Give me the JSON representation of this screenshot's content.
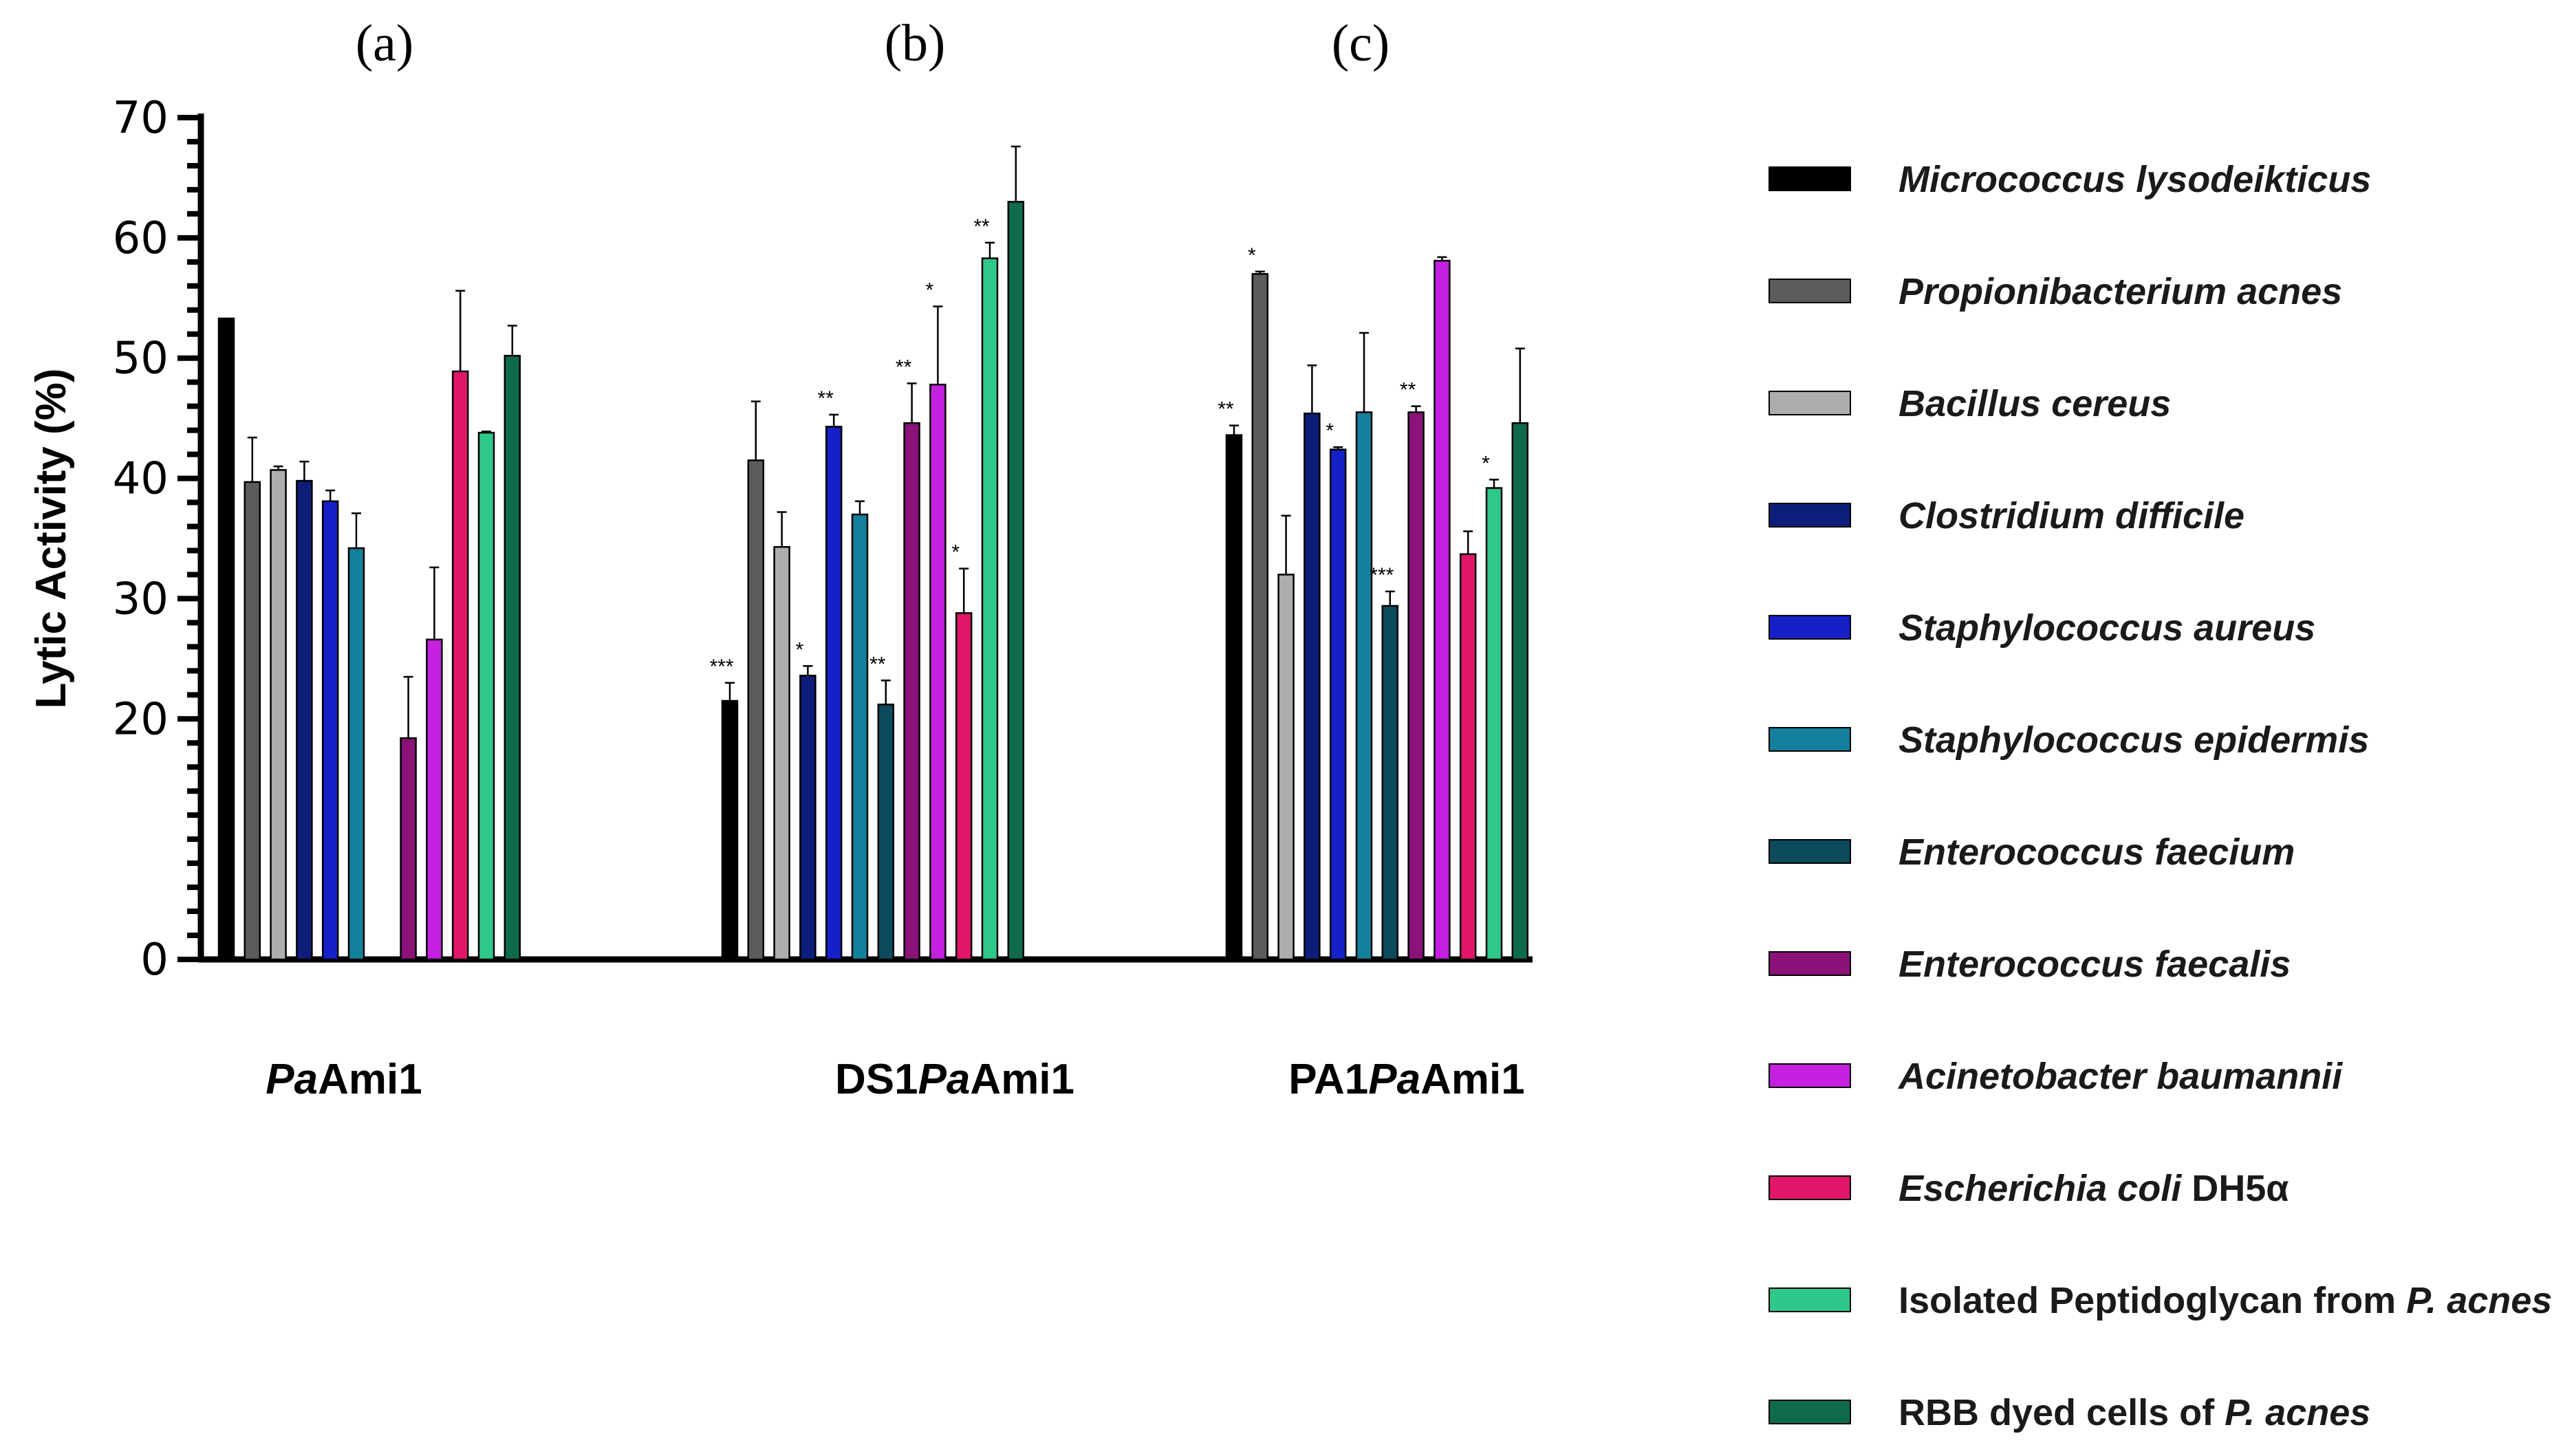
{
  "chart_data": {
    "type": "bar",
    "ylabel": "Lytic Activity (%)",
    "ylim": [
      0,
      70
    ],
    "yticks": [
      0,
      20,
      30,
      40,
      50,
      60,
      70
    ],
    "panels": [
      {
        "label": "(a)",
        "group": {
          "italic": "Pa",
          "rest": "Ami1"
        }
      },
      {
        "label": "(b)",
        "group": {
          "pre": "DS1",
          "italic": "Pa",
          "rest": "Ami1"
        }
      },
      {
        "label": "(c)",
        "group": {
          "pre": "PA1",
          "italic": "Pa",
          "rest": "Ami1"
        }
      }
    ],
    "series": [
      {
        "name": "Micrococcus lysodeikticus",
        "name_italic": "Micrococcus lysodeikticus",
        "name_plain": "",
        "color": "#000000",
        "values": [
          53.3,
          21.5,
          43.6
        ],
        "errors": [
          0,
          1.5,
          0.8
        ],
        "sig": [
          "",
          "***",
          "**"
        ]
      },
      {
        "name": "Propionibacterium acnes",
        "name_italic": "Propionibacterium acnes",
        "name_plain": "",
        "color": "#5c5c5c",
        "values": [
          39.7,
          41.5,
          57.0
        ],
        "errors": [
          3.7,
          4.9,
          0.2
        ],
        "sig": [
          "",
          "",
          "*"
        ]
      },
      {
        "name": "Bacillus cereus",
        "name_italic": "Bacillus cereus",
        "name_plain": "",
        "color": "#adadad",
        "values": [
          40.7,
          34.3,
          32.0
        ],
        "errors": [
          0.3,
          2.9,
          4.9
        ],
        "sig": [
          "",
          "",
          ""
        ]
      },
      {
        "name": "Clostridium difficile",
        "name_italic": "Clostridium difficile",
        "name_plain": "",
        "color": "#0d1e7a",
        "values": [
          39.8,
          23.6,
          45.4
        ],
        "errors": [
          1.6,
          0.8,
          4.0
        ],
        "sig": [
          "",
          "*",
          ""
        ]
      },
      {
        "name": "Staphylococcus aureus",
        "name_italic": "Staphylococcus aureus",
        "name_plain": "",
        "color": "#1620c8",
        "values": [
          38.1,
          44.3,
          42.4
        ],
        "errors": [
          0.9,
          1.0,
          0.2
        ],
        "sig": [
          "",
          "**",
          "*"
        ]
      },
      {
        "name": "Staphylococcus epidermis",
        "name_italic": "Staphylococcus epidermis",
        "name_plain": "",
        "color": "#14809c",
        "values": [
          34.2,
          37.0,
          45.5
        ],
        "errors": [
          2.9,
          1.1,
          6.6
        ],
        "sig": [
          "",
          "",
          ""
        ]
      },
      {
        "name": "Enterococcus faecium",
        "name_italic": "Enterococcus faecium",
        "name_plain": "",
        "color": "#0d4a5c",
        "values": [
          null,
          21.2,
          29.4
        ],
        "errors": [
          0,
          2.0,
          1.2
        ],
        "sig": [
          "",
          "**",
          "***"
        ]
      },
      {
        "name": "Enterococcus faecalis",
        "name_italic": "Enterococcus faecalis",
        "name_plain": "",
        "color": "#8a1279",
        "values": [
          18.4,
          44.6,
          45.5
        ],
        "errors": [
          5.1,
          3.3,
          0.5
        ],
        "sig": [
          "",
          "**",
          "**"
        ]
      },
      {
        "name": "Acinetobacter baumannii",
        "name_italic": "Acinetobacter baumannii",
        "name_plain": "",
        "color": "#c520e0",
        "values": [
          26.6,
          47.8,
          58.1
        ],
        "errors": [
          6.0,
          6.5,
          0.3
        ],
        "sig": [
          "",
          "*",
          ""
        ]
      },
      {
        "name": "Escherichia coli DH5α",
        "name_italic": "Escherichia coli",
        "name_plain": " DH5α",
        "color": "#e0176a",
        "values": [
          48.9,
          28.8,
          33.7
        ],
        "errors": [
          6.7,
          3.7,
          1.9
        ],
        "sig": [
          "",
          "*",
          ""
        ]
      },
      {
        "name": "Isolated Peptidoglycan from P. acnes",
        "name_italic": "P. acnes",
        "name_plain": "Isolated Peptidoglycan from ",
        "italic_last": true,
        "color": "#2ec98a",
        "values": [
          43.8,
          58.3,
          39.2
        ],
        "errors": [
          0.1,
          1.3,
          0.7
        ],
        "sig": [
          "",
          "**",
          "*"
        ]
      },
      {
        "name": "RBB dyed cells of P. acnes",
        "name_italic": "P. acnes",
        "name_plain": "RBB dyed cells of ",
        "italic_last": true,
        "color": "#0f6b4a",
        "values": [
          50.2,
          63.0,
          44.6
        ],
        "errors": [
          2.5,
          4.6,
          6.2
        ],
        "sig": [
          "",
          "",
          ""
        ]
      }
    ]
  }
}
